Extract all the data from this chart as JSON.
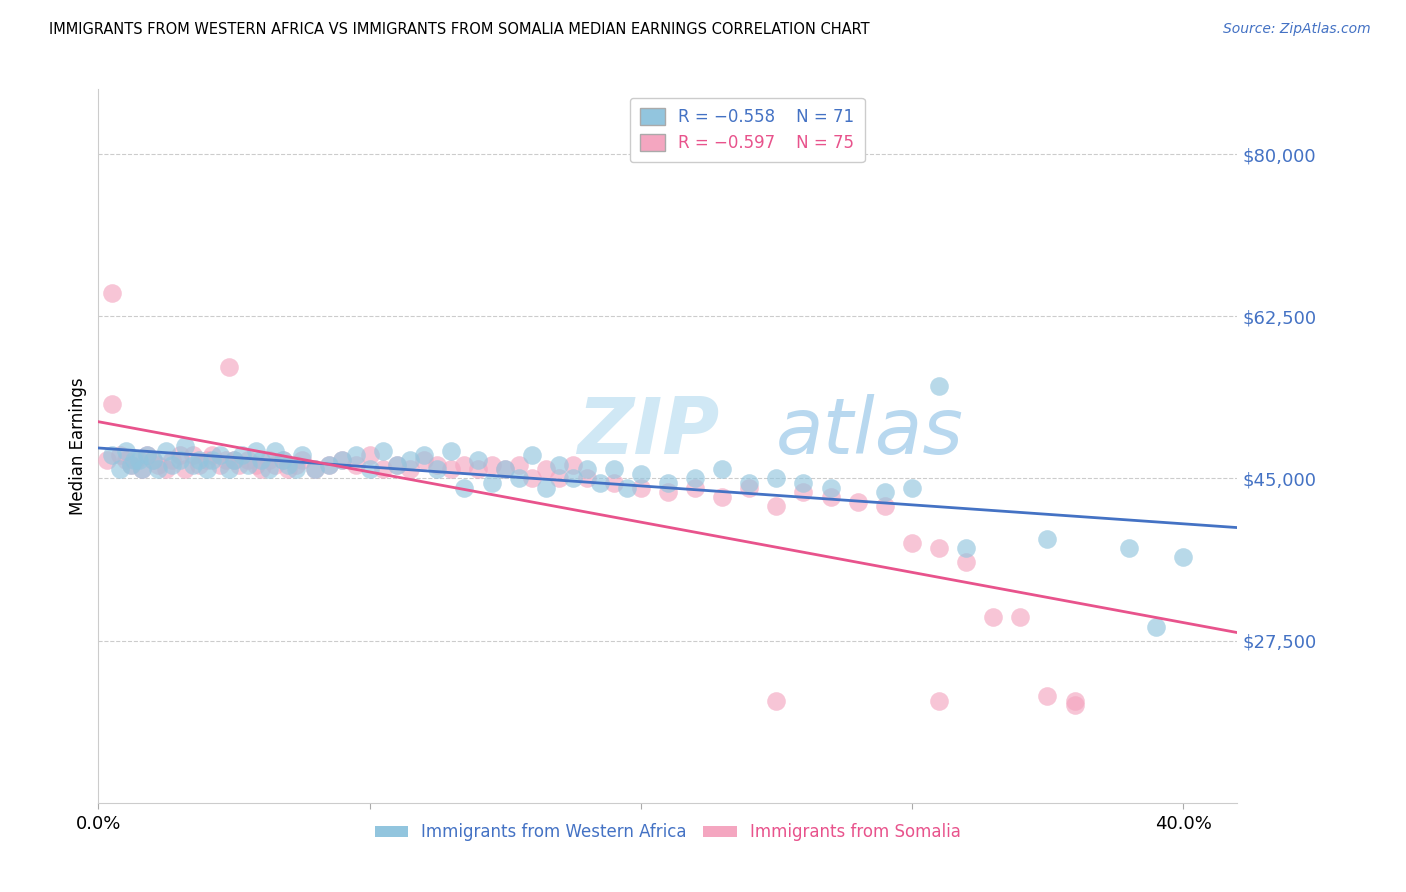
{
  "title": "IMMIGRANTS FROM WESTERN AFRICA VS IMMIGRANTS FROM SOMALIA MEDIAN EARNINGS CORRELATION CHART",
  "source": "Source: ZipAtlas.com",
  "ylabel": "Median Earnings",
  "yticks": [
    27500,
    45000,
    62500,
    80000
  ],
  "ytick_labels": [
    "$27,500",
    "$45,000",
    "$62,500",
    "$80,000"
  ],
  "xlim": [
    0.0,
    0.42
  ],
  "ylim": [
    10000,
    87000
  ],
  "legend_blue_r": "R = −0.558",
  "legend_blue_n": "N = 71",
  "legend_pink_r": "R = −0.597",
  "legend_pink_n": "N = 75",
  "legend_blue_label": "Immigrants from Western Africa",
  "legend_pink_label": "Immigrants from Somalia",
  "blue_color": "#92C5DE",
  "pink_color": "#F4A6C0",
  "line_blue": "#4472C4",
  "line_pink": "#E8538C",
  "axis_label_color": "#4472C4",
  "watermark_color": "#D0E8F5",
  "blue_scatter_x": [
    0.005,
    0.008,
    0.01,
    0.012,
    0.013,
    0.015,
    0.016,
    0.018,
    0.02,
    0.022,
    0.025,
    0.027,
    0.03,
    0.032,
    0.035,
    0.037,
    0.04,
    0.042,
    0.045,
    0.048,
    0.05,
    0.053,
    0.055,
    0.058,
    0.06,
    0.063,
    0.065,
    0.068,
    0.07,
    0.073,
    0.075,
    0.08,
    0.085,
    0.09,
    0.095,
    0.1,
    0.105,
    0.11,
    0.115,
    0.12,
    0.125,
    0.13,
    0.135,
    0.14,
    0.145,
    0.15,
    0.155,
    0.16,
    0.165,
    0.17,
    0.175,
    0.18,
    0.185,
    0.19,
    0.195,
    0.2,
    0.21,
    0.22,
    0.23,
    0.24,
    0.25,
    0.26,
    0.27,
    0.29,
    0.3,
    0.31,
    0.32,
    0.35,
    0.38,
    0.39,
    0.4
  ],
  "blue_scatter_y": [
    47500,
    46000,
    48000,
    46500,
    47000,
    47000,
    46000,
    47500,
    47000,
    46000,
    48000,
    46500,
    47000,
    48500,
    46500,
    47000,
    46000,
    47000,
    47500,
    46000,
    47000,
    47500,
    46500,
    48000,
    47000,
    46000,
    48000,
    47000,
    46500,
    46000,
    47500,
    46000,
    46500,
    47000,
    47500,
    46000,
    48000,
    46500,
    47000,
    47500,
    46000,
    48000,
    44000,
    47000,
    44500,
    46000,
    45000,
    47500,
    44000,
    46500,
    45000,
    46000,
    44500,
    46000,
    44000,
    45500,
    44500,
    45000,
    46000,
    44500,
    45000,
    44500,
    44000,
    43500,
    44000,
    55000,
    37500,
    38500,
    37500,
    29000,
    36500
  ],
  "pink_scatter_x": [
    0.003,
    0.005,
    0.008,
    0.01,
    0.012,
    0.014,
    0.016,
    0.018,
    0.02,
    0.022,
    0.025,
    0.027,
    0.03,
    0.032,
    0.035,
    0.037,
    0.04,
    0.042,
    0.045,
    0.047,
    0.05,
    0.052,
    0.055,
    0.058,
    0.06,
    0.063,
    0.065,
    0.068,
    0.07,
    0.073,
    0.075,
    0.08,
    0.085,
    0.09,
    0.095,
    0.1,
    0.105,
    0.11,
    0.115,
    0.12,
    0.125,
    0.13,
    0.135,
    0.14,
    0.145,
    0.15,
    0.155,
    0.16,
    0.165,
    0.17,
    0.175,
    0.18,
    0.19,
    0.2,
    0.21,
    0.22,
    0.23,
    0.24,
    0.25,
    0.26,
    0.27,
    0.28,
    0.29,
    0.3,
    0.31,
    0.32,
    0.33,
    0.34,
    0.35,
    0.36,
    0.005,
    0.048,
    0.25,
    0.31,
    0.36
  ],
  "pink_scatter_y": [
    47000,
    53000,
    47500,
    47000,
    46500,
    47000,
    46000,
    47500,
    47000,
    46500,
    46000,
    47000,
    47500,
    46000,
    47500,
    46500,
    47000,
    47500,
    46500,
    47000,
    47000,
    46500,
    47000,
    46500,
    46000,
    47000,
    46500,
    47000,
    46000,
    46500,
    47000,
    46000,
    46500,
    47000,
    46500,
    47500,
    46000,
    46500,
    46000,
    47000,
    46500,
    46000,
    46500,
    46000,
    46500,
    46000,
    46500,
    45000,
    46000,
    45000,
    46500,
    45000,
    44500,
    44000,
    43500,
    44000,
    43000,
    44000,
    42000,
    43500,
    43000,
    42500,
    42000,
    38000,
    37500,
    36000,
    30000,
    30000,
    21500,
    20500,
    65000,
    57000,
    21000,
    21000,
    21000
  ]
}
